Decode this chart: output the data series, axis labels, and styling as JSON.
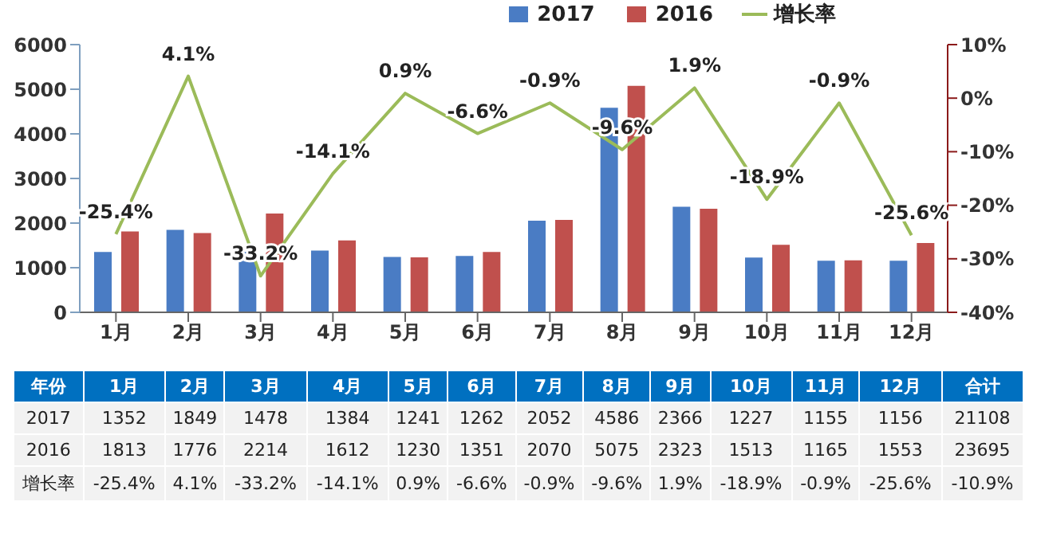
{
  "chart_data": {
    "type": "bar",
    "categories": [
      "1月",
      "2月",
      "3月",
      "4月",
      "5月",
      "6月",
      "7月",
      "8月",
      "9月",
      "10月",
      "11月",
      "12月"
    ],
    "series": [
      {
        "name": "2017",
        "color": "#4a7cc4",
        "values": [
          1352,
          1849,
          1478,
          1384,
          1241,
          1262,
          2052,
          4586,
          2366,
          1227,
          1155,
          1156
        ]
      },
      {
        "name": "2016",
        "color": "#c0504d",
        "values": [
          1813,
          1776,
          2214,
          1612,
          1230,
          1351,
          2070,
          5075,
          2323,
          1513,
          1165,
          1553
        ]
      },
      {
        "name": "增长率",
        "type": "line",
        "axis": "y2",
        "color": "#9bbb59",
        "values": [
          -25.4,
          4.1,
          -33.2,
          -14.1,
          0.9,
          -6.6,
          -0.9,
          -9.6,
          1.9,
          -18.9,
          -0.9,
          -25.6
        ],
        "value_labels": [
          "-25.4%",
          "4.1%",
          "-33.2%",
          "-14.1%",
          "0.9%",
          "-6.6%",
          "-0.9%",
          "-9.6%",
          "1.9%",
          "-18.9%",
          "-0.9%",
          "-25.6%"
        ]
      }
    ],
    "ylim": [
      0,
      6000
    ],
    "yticks": [
      0,
      1000,
      2000,
      3000,
      4000,
      5000,
      6000
    ],
    "y2lim": [
      -40,
      10
    ],
    "y2ticks": [
      {
        "value": -40,
        "label": "-40%"
      },
      {
        "value": -30,
        "label": "-30%"
      },
      {
        "value": -20,
        "label": "-20%"
      },
      {
        "value": -10,
        "label": "-10%"
      },
      {
        "value": 0,
        "label": "0%"
      },
      {
        "value": 10,
        "label": "10%"
      }
    ],
    "legend": "top right",
    "grid": false,
    "marker": "none",
    "data_labels": true,
    "annotations": [
      "年份",
      "合计",
      "21108",
      "23695",
      "-10.9%"
    ]
  }
}
